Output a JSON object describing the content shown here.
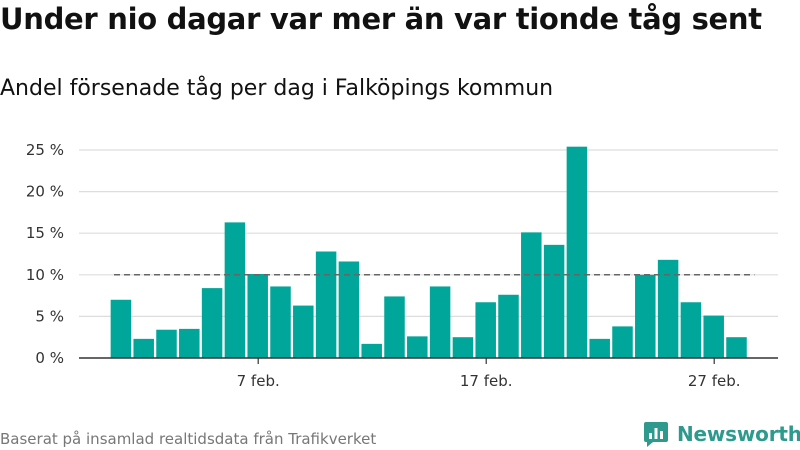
{
  "header": {
    "title": "Under nio dagar var mer än var tionde tåg sent",
    "subtitle": "Andel försenade tåg per dag i Falköpings kommun"
  },
  "footer": {
    "source": "Baserat på insamlad realtidsdata från Trafikverket",
    "brand": "Newsworthy"
  },
  "colors": {
    "bar": "#00a699",
    "grid": "#dddddd",
    "axis": "#333333",
    "reference_line": "#666666",
    "brand": "#2e9a8e"
  },
  "chart_data": {
    "type": "bar",
    "x": [
      "1 feb.",
      "2 feb.",
      "3 feb.",
      "4 feb.",
      "5 feb.",
      "6 feb.",
      "7 feb.",
      "8 feb.",
      "9 feb.",
      "10 feb.",
      "11 feb.",
      "12 feb.",
      "13 feb.",
      "14 feb.",
      "15 feb.",
      "16 feb.",
      "17 feb.",
      "18 feb.",
      "19 feb.",
      "20 feb.",
      "21 feb.",
      "22 feb.",
      "23 feb.",
      "24 feb.",
      "25 feb.",
      "26 feb.",
      "27 feb.",
      "28 feb."
    ],
    "values": [
      7.0,
      2.3,
      3.4,
      3.5,
      8.4,
      16.3,
      10.1,
      8.6,
      6.3,
      12.8,
      11.6,
      1.7,
      7.4,
      2.6,
      8.6,
      2.5,
      6.7,
      7.6,
      15.1,
      13.6,
      25.4,
      2.3,
      3.8,
      10.0,
      11.8,
      6.7,
      5.1,
      2.5
    ],
    "xticks": [
      "7 feb.",
      "17 feb.",
      "27 feb."
    ],
    "ylim": [
      0,
      25
    ],
    "yticks": [
      "0 %",
      "5 %",
      "10 %",
      "15 %",
      "20 %",
      "25 %"
    ],
    "reference_line": 10,
    "grid": true
  }
}
